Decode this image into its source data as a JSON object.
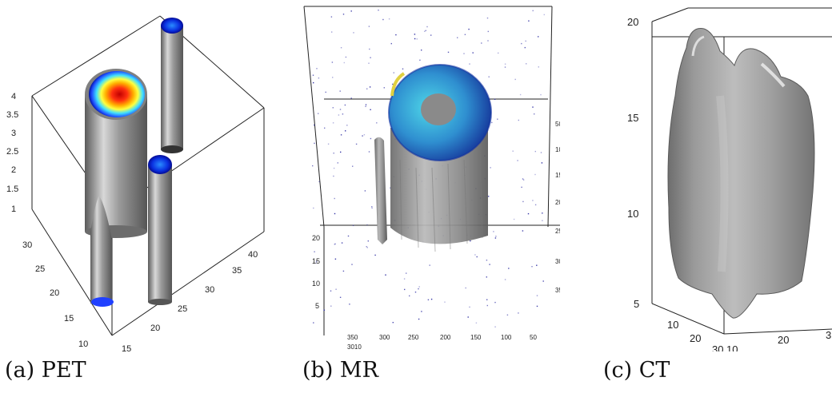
{
  "panels": [
    {
      "caption": "(a) PET",
      "z_ticks": [
        "4",
        "3.5",
        "3",
        "2.5",
        "2",
        "1.5",
        "1"
      ],
      "y_ticks": [
        "30",
        "25",
        "20",
        "15",
        "10"
      ],
      "x_ticks": [
        "15",
        "20",
        "25",
        "30",
        "35",
        "40"
      ]
    },
    {
      "caption": "(b) MR",
      "z_ticks": [
        "20",
        "15",
        "10",
        "5"
      ],
      "x_ticks": [
        "350",
        "300",
        "250",
        "200",
        "150",
        "100",
        "50"
      ],
      "y_ticks": [
        "50",
        "100",
        "150",
        "200",
        "250",
        "300",
        "350"
      ],
      "corner_label": "3010"
    },
    {
      "caption": "(c) CT",
      "z_ticks": [
        "20",
        "15",
        "10",
        "5"
      ],
      "y_ticks": [
        "10",
        "20",
        "30"
      ],
      "x_ticks": [
        "10",
        "20",
        "3"
      ]
    }
  ],
  "colors": {
    "cylinder_gray": "#8c8c8c",
    "pet_hot": "#e01010",
    "mr_cyan": "#37a8d8",
    "ct_gray": "#9a9a9a"
  }
}
